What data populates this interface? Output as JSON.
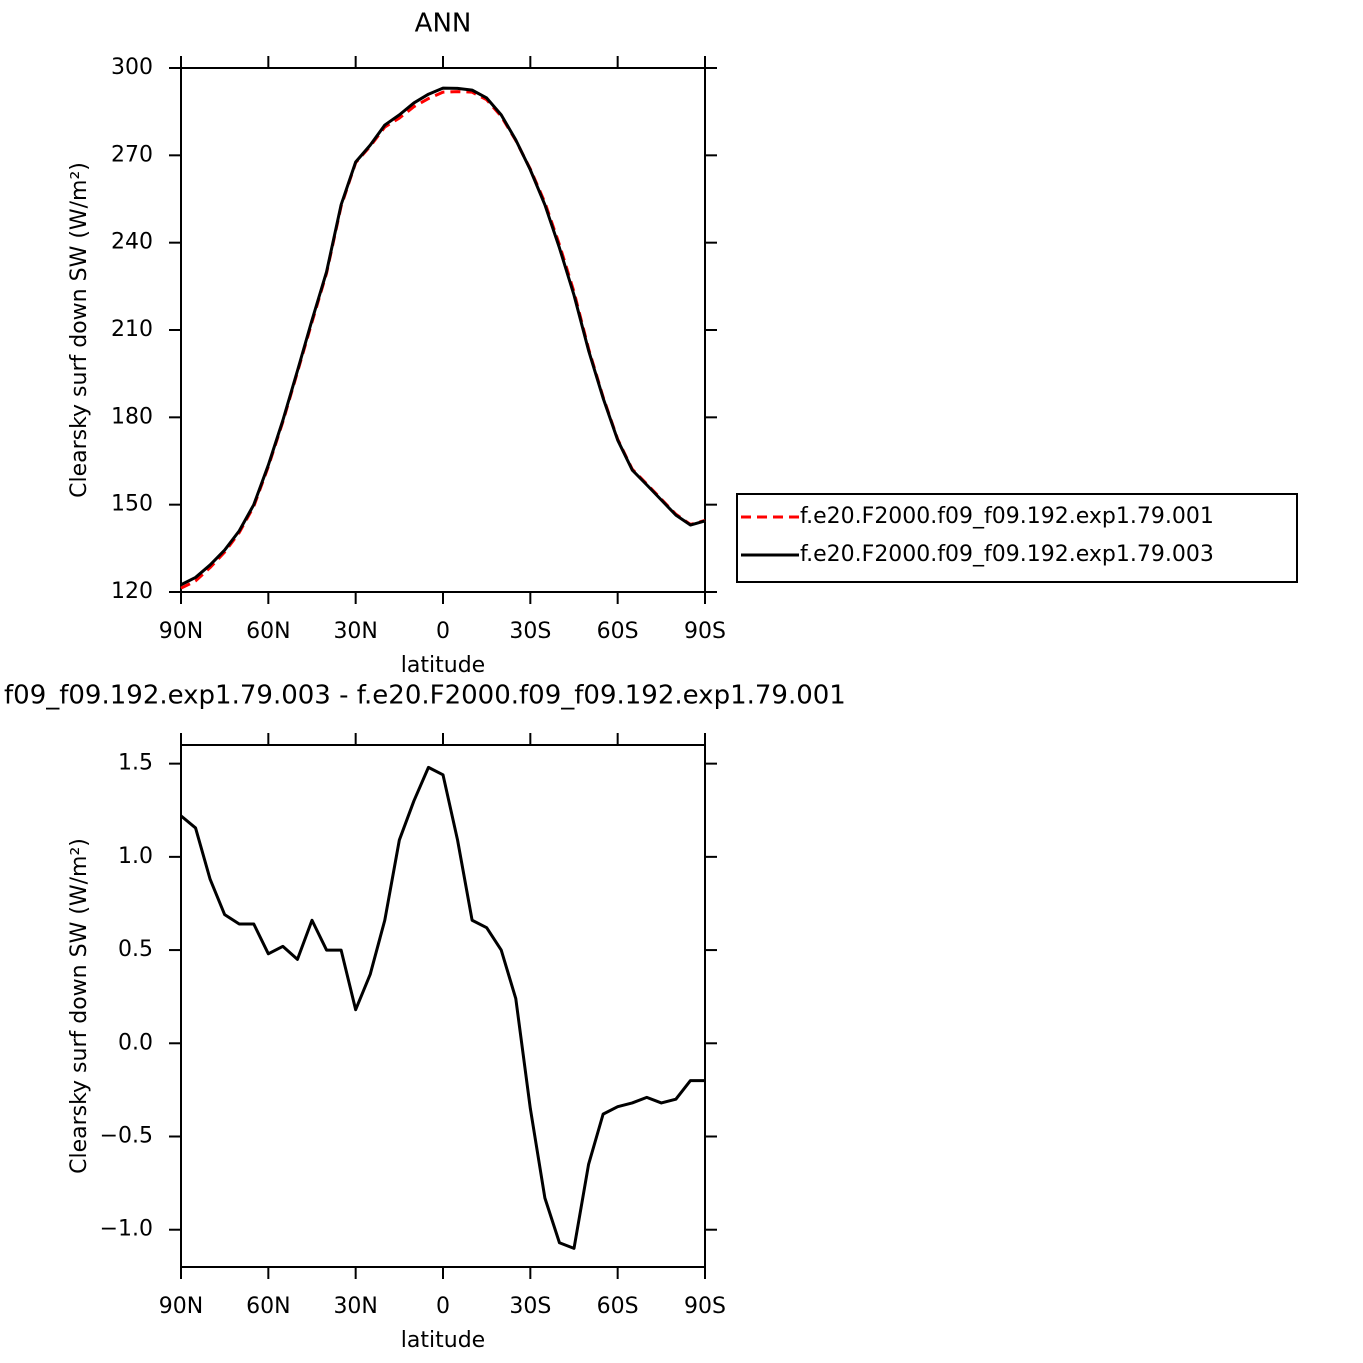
{
  "chart_data": [
    {
      "type": "line",
      "title": "ANN",
      "x_label": "latitude",
      "y_label": "Clearsky surf down SW (W/m²)",
      "x": [
        90,
        85,
        80,
        75,
        70,
        65,
        60,
        55,
        50,
        45,
        40,
        35,
        30,
        25,
        20,
        15,
        10,
        5,
        0,
        -5,
        -10,
        -15,
        -20,
        -25,
        -30,
        -35,
        -40,
        -45,
        -50,
        -55,
        -60,
        -65,
        -70,
        -75,
        -80,
        -85,
        -90
      ],
      "xlim": [
        90,
        -90
      ],
      "xticks": [
        {
          "value": 90,
          "label": "90N"
        },
        {
          "value": 60,
          "label": "60N"
        },
        {
          "value": 30,
          "label": "30N"
        },
        0,
        {
          "value": -30,
          "label": "30S"
        },
        {
          "value": -60,
          "label": "60S"
        },
        {
          "value": -90,
          "label": "90S"
        }
      ],
      "ylim": [
        120,
        300
      ],
      "yticks": [
        120,
        150,
        180,
        210,
        240,
        270,
        300
      ],
      "legend": "outside-right",
      "series": [
        {
          "name": "f.e20.F2000.f09_f09.192.exp1.79.001",
          "color": "#ff0000",
          "line_style": "dashed",
          "values": [
            121.3,
            123.8,
            128.4,
            133.7,
            140.4,
            149.4,
            163.1,
            178.5,
            195.5,
            212.7,
            229.5,
            252.5,
            267.5,
            273.1,
            279.7,
            282.8,
            286.7,
            289.5,
            291.7,
            291.9,
            291.7,
            289.1,
            283.4,
            275.1,
            265.3,
            253.8,
            239.3,
            223.1,
            203.6,
            187.0,
            172.5,
            162.2,
            157.1,
            151.9,
            146.7,
            143.2,
            144.6
          ]
        },
        {
          "name": "f.e20.F2000.f09_f09.192.exp1.79.003",
          "color": "#000000",
          "line_style": "solid",
          "values": [
            122.5,
            125,
            129.3,
            134.4,
            141,
            150,
            163.6,
            179,
            196,
            213.4,
            230,
            253,
            267.7,
            273.5,
            280.4,
            283.9,
            288,
            291,
            293.1,
            293,
            292.4,
            289.7,
            283.9,
            275.3,
            265,
            253,
            238.2,
            222,
            203,
            186.6,
            172.2,
            161.9,
            156.8,
            151.6,
            146.4,
            143,
            144.4
          ]
        }
      ]
    },
    {
      "type": "line",
      "title": "f09_f09.192.exp1.79.003 - f.e20.F2000.f09_f09.192.exp1.79.001",
      "x_label": "latitude",
      "y_label": "Clearsky surf down SW (W/m²)",
      "x": [
        90,
        85,
        80,
        75,
        70,
        65,
        60,
        55,
        50,
        45,
        40,
        35,
        30,
        25,
        20,
        15,
        10,
        5,
        0,
        -5,
        -10,
        -15,
        -20,
        -25,
        -30,
        -35,
        -40,
        -45,
        -50,
        -55,
        -60,
        -65,
        -70,
        -75,
        -80,
        -85,
        -90
      ],
      "xlim": [
        90,
        -90
      ],
      "xticks": [
        {
          "value": 90,
          "label": "90N"
        },
        {
          "value": 60,
          "label": "60N"
        },
        {
          "value": 30,
          "label": "30N"
        },
        0,
        {
          "value": -30,
          "label": "30S"
        },
        {
          "value": -60,
          "label": "60S"
        },
        {
          "value": -90,
          "label": "90S"
        }
      ],
      "ylim": [
        -1.2,
        1.6
      ],
      "yticks": [
        {
          "value": -1,
          "label": "−1.0"
        },
        {
          "value": -0.5,
          "label": "−0.5"
        },
        {
          "value": 0,
          "label": "0.0"
        },
        0.5,
        {
          "value": 1,
          "label": "1.0"
        },
        1.5
      ],
      "series": [
        {
          "color": "#000000",
          "line_style": "solid",
          "values": [
            1.22,
            1.155,
            0.88,
            0.69,
            0.64,
            0.64,
            0.48,
            0.52,
            0.45,
            0.66,
            0.5,
            0.5,
            0.18,
            0.37,
            0.66,
            1.09,
            1.3,
            1.48,
            1.44,
            1.09,
            0.66,
            0.62,
            0.5,
            0.24,
            -0.35,
            -0.83,
            -1.07,
            -1.1,
            -0.65,
            -0.38,
            -0.34,
            -0.32,
            -0.29,
            -0.32,
            -0.3,
            -0.2,
            -0.2
          ]
        }
      ]
    }
  ]
}
